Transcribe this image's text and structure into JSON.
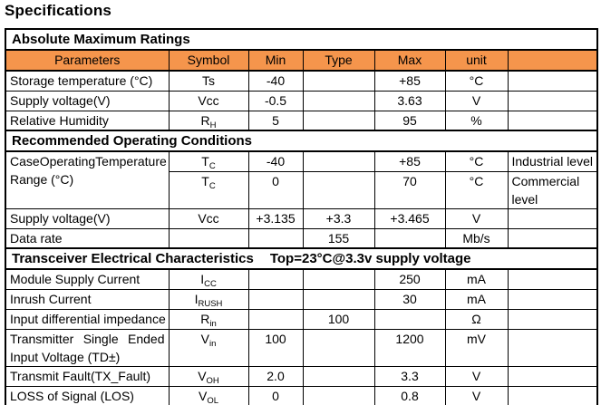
{
  "page": {
    "title": "Specifications"
  },
  "colors": {
    "header_fill": "#F5954C",
    "border": "#000000",
    "text": "#000000",
    "background": "#FFFFFF"
  },
  "table": {
    "header": {
      "columns": [
        "Parameters",
        "Symbol",
        "Min",
        "Type",
        "Max",
        "unit",
        ""
      ]
    },
    "sections": [
      {
        "title": "Absolute Maximum Ratings",
        "note": "",
        "rows": [
          {
            "param": [
              {
                "text": "Storage temperature (°C)",
                "justify": false
              }
            ],
            "symbol": {
              "base": "Ts",
              "sub": ""
            },
            "min": "-40",
            "typ": "",
            "max": "+85",
            "unit": "°C",
            "note": []
          },
          {
            "param": [
              {
                "text": "Supply voltage(V)",
                "justify": false
              }
            ],
            "symbol": {
              "base": "Vcc",
              "sub": ""
            },
            "min": "-0.5",
            "typ": "",
            "max": "3.63",
            "unit": "V",
            "note": []
          },
          {
            "param": [
              {
                "text": "Relative Humidity",
                "justify": false
              }
            ],
            "symbol": {
              "base": "R",
              "sub": "H"
            },
            "min": "5",
            "typ": "",
            "max": "95",
            "unit": "%",
            "note": []
          }
        ]
      },
      {
        "title": "Recommended Operating Conditions",
        "note": "",
        "rows": [
          {
            "param": [
              {
                "text": "Case Operating Temperature",
                "justify": true
              },
              {
                "text": "Range (°C)",
                "justify": false
              }
            ],
            "param_rowspan": 2,
            "symbol": {
              "base": "T",
              "sub": "C"
            },
            "min": "-40",
            "typ": "",
            "max": "+85",
            "unit": "°C",
            "note": [
              "Industrial level"
            ]
          },
          {
            "param": null,
            "symbol": {
              "base": "T",
              "sub": "C"
            },
            "min": "0",
            "typ": "",
            "max": "70",
            "unit": "°C",
            "note": [
              "Commercial",
              "level"
            ],
            "tall": true
          },
          {
            "param": [
              {
                "text": "Supply voltage(V)",
                "justify": false
              }
            ],
            "symbol": {
              "base": "Vcc",
              "sub": ""
            },
            "min": "+3.135",
            "typ": "+3.3",
            "max": "+3.465",
            "unit": "V",
            "note": []
          },
          {
            "param": [
              {
                "text": "Data rate",
                "justify": false
              }
            ],
            "symbol": null,
            "min": "",
            "typ": "155",
            "max": "",
            "unit": "Mb/s",
            "note": []
          }
        ]
      },
      {
        "title": "Transceiver Electrical Characteristics",
        "note": "Top=23°C@3.3v supply voltage",
        "rows": [
          {
            "param": [
              {
                "text": "Module Supply Current",
                "justify": false
              }
            ],
            "symbol": {
              "base": "I",
              "sub": "CC"
            },
            "min": "",
            "typ": "",
            "max": "250",
            "unit": "mA",
            "note": []
          },
          {
            "param": [
              {
                "text": "Inrush Current",
                "justify": false
              }
            ],
            "symbol": {
              "base": "I",
              "sub": "RUSH"
            },
            "min": "",
            "typ": "",
            "max": "30",
            "unit": "mA",
            "note": []
          },
          {
            "param": [
              {
                "text": "Input differential impedance",
                "justify": false
              }
            ],
            "symbol": {
              "base": "R",
              "sub": "in"
            },
            "min": "",
            "typ": "100",
            "max": "",
            "unit": "Ω",
            "note": []
          },
          {
            "param": [
              {
                "text": "Transmitter Single Ended",
                "justify": true
              },
              {
                "text": "Input Voltage (TD±)",
                "justify": false
              }
            ],
            "symbol": {
              "base": "V",
              "sub": "in"
            },
            "min": "100",
            "typ": "",
            "max": "1200",
            "unit": "mV",
            "note": []
          },
          {
            "param": [
              {
                "text": "Transmit Fault(TX_Fault)",
                "justify": false
              }
            ],
            "symbol": {
              "base": "V",
              "sub": "OH"
            },
            "min": "2.0",
            "typ": "",
            "max": "3.3",
            "unit": "V",
            "note": []
          },
          {
            "param": [
              {
                "text": "LOSS of Signal (LOS)",
                "justify": false
              }
            ],
            "symbol": {
              "base": "V",
              "sub": "OL"
            },
            "min": "0",
            "typ": "",
            "max": "0.8",
            "unit": "V",
            "note": []
          }
        ]
      }
    ]
  }
}
